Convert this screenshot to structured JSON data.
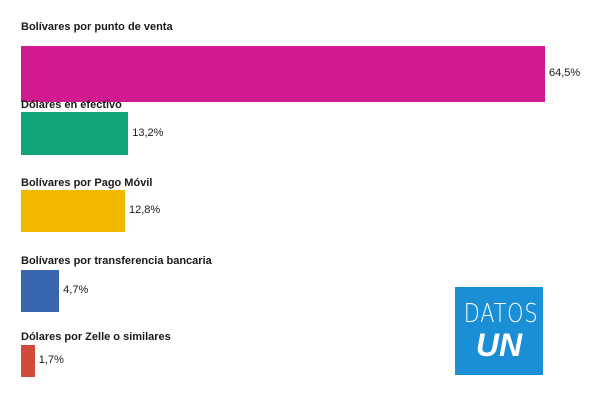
{
  "chart_data": {
    "type": "bar",
    "orientation": "horizontal",
    "categories": [
      "Bolívares por punto de venta",
      "Dólares en efectivo",
      "Bolívares por Pago Móvil",
      "Bolívares por transferencia bancaria",
      "Dólares por Zelle o similares"
    ],
    "values": [
      64.5,
      13.2,
      12.8,
      4.7,
      1.7
    ],
    "value_labels": [
      "64,5%",
      "13,2%",
      "12,8%",
      "4,7%",
      "1,7%"
    ],
    "colors": [
      "#D11A8F",
      "#12A57A",
      "#F2B800",
      "#3866AE",
      "#D24A3C"
    ],
    "xlim": [
      0,
      64.5
    ],
    "grid": false
  },
  "logo": {
    "line1": "DATOS",
    "line2": "UN"
  }
}
